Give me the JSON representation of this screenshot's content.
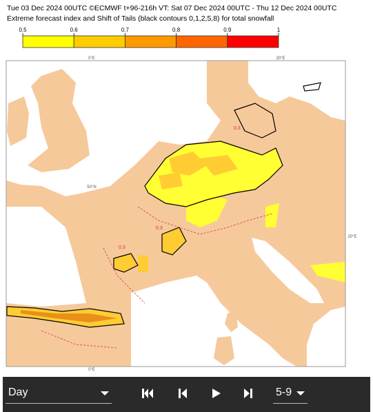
{
  "header": {
    "line1": "Tue 03 Dec 2024 00UTC ©ECMWF t+96-216h  VT: Sat 07 Dec 2024 00UTC - Thu 12 Dec 2024 00UTC",
    "line2": "Extreme forecast index and Shift of Tails (black contours 0,1,2,5,8) for total snowfall"
  },
  "colorbar": {
    "ticks": [
      0.5,
      0.6,
      0.7,
      0.8,
      0.9,
      1
    ],
    "colors": [
      "#ffff00",
      "#ffcc00",
      "#ff9900",
      "#ff6600",
      "#ff0000"
    ]
  },
  "map": {
    "labels": [
      "0°E",
      "20°E",
      "50°N",
      "20°E",
      "0°E"
    ],
    "contour_labels": [
      "0.3",
      "0.3",
      "0.3"
    ]
  },
  "controls": {
    "period": "Day",
    "range": "5-9"
  }
}
